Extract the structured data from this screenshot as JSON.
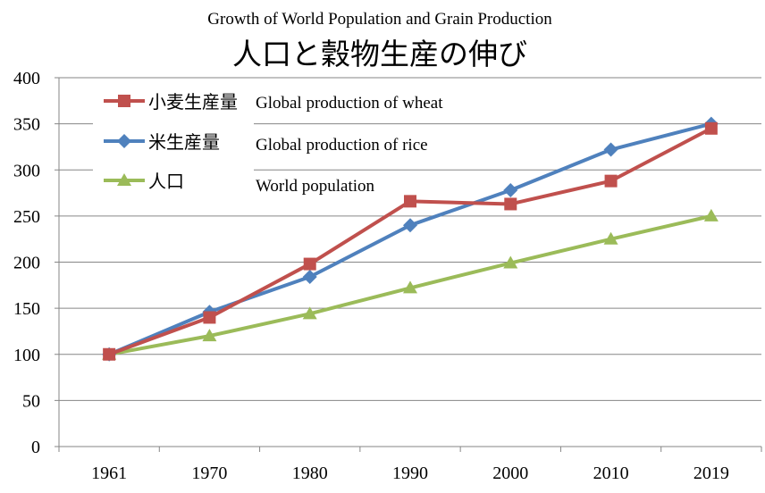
{
  "chart_data": {
    "type": "line",
    "title": "人口と穀物生産の伸び",
    "subtitle": "Growth of World Population and Grain Production",
    "xlabel": "",
    "ylabel": "",
    "ylim": [
      0,
      400
    ],
    "yticks": [
      "0",
      "50",
      "100",
      "150",
      "200",
      "250",
      "300",
      "350",
      "400"
    ],
    "categories": [
      "1961",
      "1970",
      "1980",
      "1990",
      "2000",
      "2010",
      "2019"
    ],
    "grid": true,
    "legend_position": "top-left",
    "series": [
      {
        "name": "小麦生産量",
        "name_en": "Global production of wheat",
        "color": "#c0504d",
        "marker": "square",
        "values": [
          100,
          140,
          198,
          266,
          263,
          288,
          345
        ]
      },
      {
        "name": "米生産量",
        "name_en": "Global production of rice",
        "color": "#4f81bd",
        "marker": "diamond",
        "values": [
          100,
          146,
          184,
          240,
          278,
          322,
          350
        ]
      },
      {
        "name": "人口",
        "name_en": "World population",
        "color": "#9bbb59",
        "marker": "triangle",
        "values": [
          100,
          120,
          144,
          172,
          199,
          225,
          250
        ]
      }
    ]
  }
}
